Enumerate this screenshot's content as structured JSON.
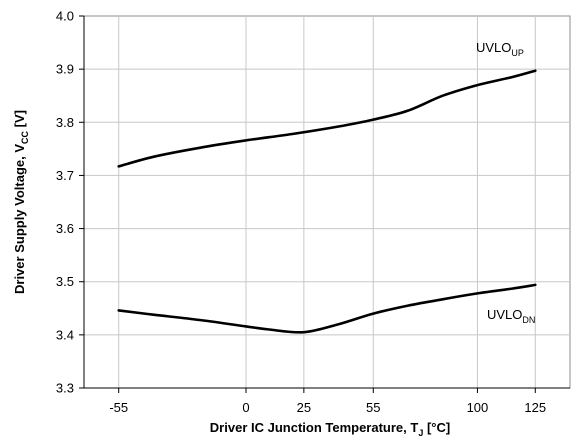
{
  "chart_data": {
    "type": "line",
    "xlabel": {
      "main": "Driver IC Junction Temperature, T",
      "sub": "J",
      "tail": " [°C]"
    },
    "ylabel": {
      "main": "Driver Supply Voltage, V",
      "sub": "CC",
      "tail": " [V]"
    },
    "xlim": [
      -70,
      140
    ],
    "ylim": [
      3.3,
      4.0
    ],
    "x_ticks": [
      -55,
      0,
      25,
      55,
      100,
      125
    ],
    "x_tick_labels": [
      "-55",
      "0",
      "25",
      "55",
      "100",
      "125"
    ],
    "y_ticks": [
      3.3,
      3.4,
      3.5,
      3.6,
      3.7,
      3.8,
      3.9,
      4.0
    ],
    "y_tick_labels": [
      "3.3",
      "3.4",
      "3.5",
      "3.6",
      "3.7",
      "3.8",
      "3.9",
      "4.0"
    ],
    "grid": true,
    "series": [
      {
        "name": "UVLO_UP",
        "label_main": "UVLO",
        "label_sub": "UP",
        "color": "#000000",
        "x": [
          -55,
          -40,
          -20,
          0,
          20,
          40,
          55,
          70,
          85,
          100,
          115,
          125
        ],
        "y": [
          3.717,
          3.735,
          3.752,
          3.766,
          3.778,
          3.792,
          3.805,
          3.822,
          3.85,
          3.87,
          3.885,
          3.897
        ]
      },
      {
        "name": "UVLO_DN",
        "label_main": "UVLO",
        "label_sub": "DN",
        "color": "#000000",
        "x": [
          -55,
          -40,
          -20,
          0,
          10,
          25,
          40,
          55,
          70,
          85,
          100,
          115,
          125
        ],
        "y": [
          3.446,
          3.438,
          3.428,
          3.416,
          3.41,
          3.405,
          3.42,
          3.44,
          3.455,
          3.467,
          3.478,
          3.487,
          3.494
        ]
      }
    ]
  }
}
